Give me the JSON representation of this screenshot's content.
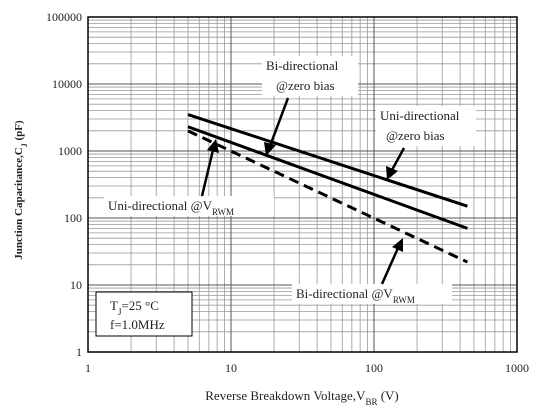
{
  "chart_data": {
    "type": "line",
    "xlabel": {
      "text": "Reverse  Breakdown Voltage,V",
      "sub": "BR",
      "tail": " (V)"
    },
    "ylabel": {
      "text": "Junction Capacitance,C",
      "sub": "J",
      "tail": " (pF)"
    },
    "xlog": true,
    "ylog": true,
    "grid": true,
    "minor_grid": true,
    "xlim": [
      1,
      1000
    ],
    "xticks": [
      1,
      10,
      100,
      1000
    ],
    "ylim": [
      1,
      100000
    ],
    "yticks": [
      1,
      10,
      100,
      1000,
      10000,
      100000
    ],
    "series": [
      {
        "color": "#000000",
        "dashed": false,
        "x": [
          5,
          450
        ],
        "values": [
          3500,
          150
        ]
      },
      {
        "color": "#000000",
        "dashed": false,
        "x": [
          5,
          450
        ],
        "values": [
          2300,
          70
        ]
      },
      {
        "color": "#000000",
        "dashed": true,
        "x": [
          5,
          450
        ],
        "values": [
          2000,
          22
        ]
      }
    ],
    "annotations": {
      "bi_zero": [
        "Bi-directional",
        "@zero bias"
      ],
      "uni_zero": [
        "Uni-directional",
        "@zero bias"
      ],
      "uni_rwm": {
        "text": "Uni-directional @V",
        "sub": "RWM"
      },
      "bi_rwm": {
        "text": "Bi-directional @V",
        "sub": "RWM"
      },
      "conditions": {
        "text": "T",
        "sub": "J",
        "tail": "=25 °C",
        "line2": "f=1.0MHz"
      }
    }
  }
}
